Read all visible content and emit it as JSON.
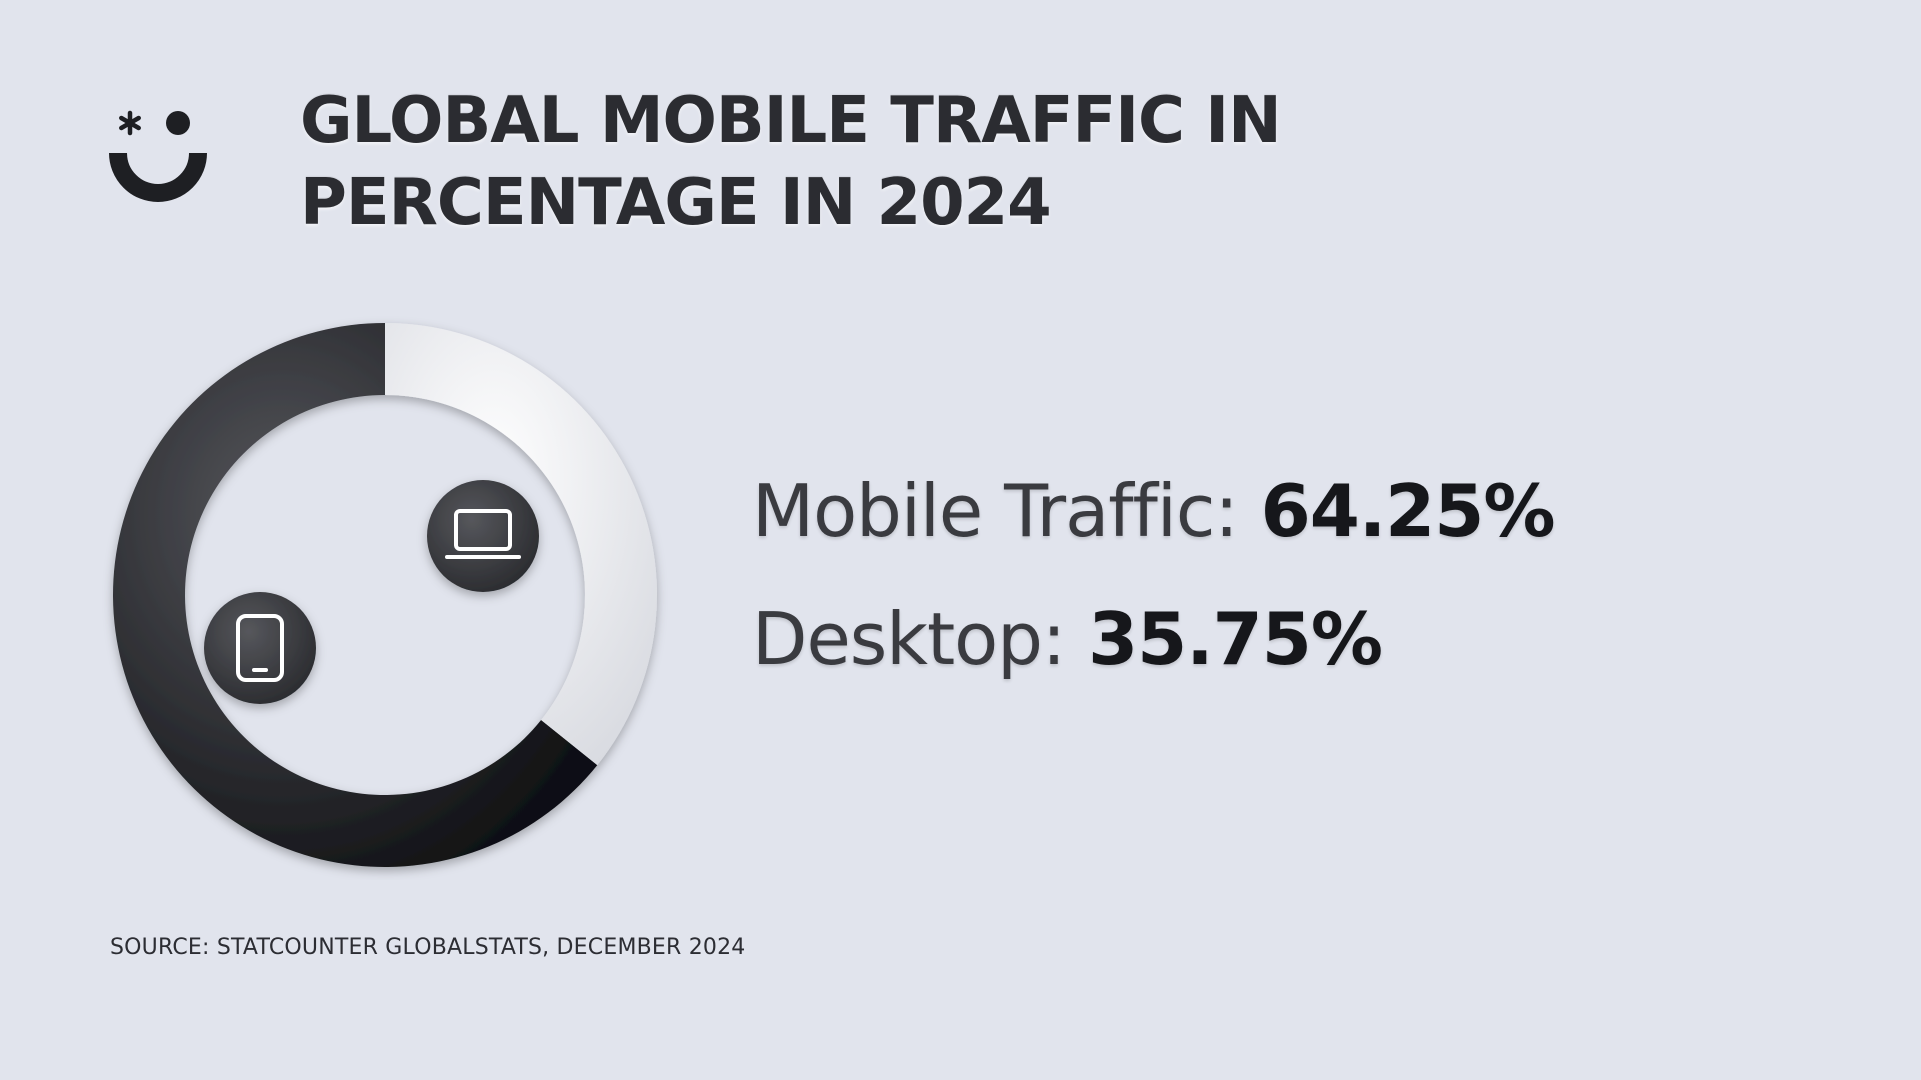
{
  "title_lines": [
    "GLOBAL MOBILE TRAFFIC IN",
    "PERCENTAGE IN 2024"
  ],
  "source": "SOURCE: STATCOUNTER GLOBALSTATS, DECEMBER 2024",
  "logo_icon": "smiley-asterisk-logo-icon",
  "colors": {
    "background": "#e1e4ed",
    "mobile": "#1e1f23",
    "desktop": "#f2f3f6",
    "text": "#2b2c31"
  },
  "chart_data": {
    "type": "pie",
    "title": "GLOBAL MOBILE TRAFFIC IN PERCENTAGE IN 2024",
    "categories": [
      "Mobile Traffic",
      "Desktop"
    ],
    "values": [
      64.25,
      35.75
    ],
    "value_labels": [
      "64.25%",
      "35.75%"
    ],
    "label_prefixes": [
      "Mobile Traffic:",
      "Desktop:"
    ],
    "icons": [
      "smartphone-icon",
      "laptop-icon"
    ],
    "legend": "right"
  }
}
